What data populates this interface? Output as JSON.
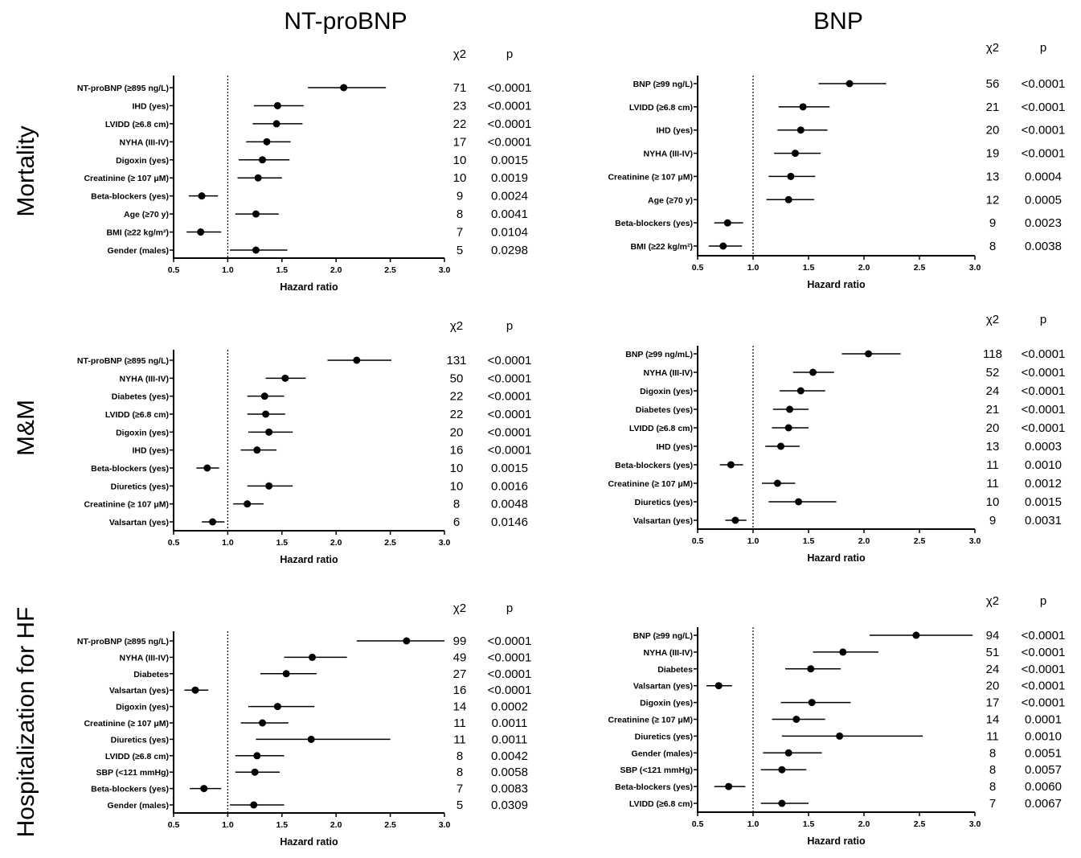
{
  "column_titles": [
    "NT-proBNP",
    "BNP"
  ],
  "row_titles": [
    "Mortality",
    "M&M",
    "Hospitalization for HF"
  ],
  "chart_data": [
    {
      "type": "scatter",
      "xlabel": "Hazard ratio",
      "xlim": [
        0.5,
        3.0
      ],
      "xticks": [
        "0.5",
        "1.0",
        "1.5",
        "2.0",
        "2.5",
        "3.0"
      ],
      "reference_line": 1.0,
      "col_headers": [
        "χ2",
        "p"
      ],
      "rows": [
        {
          "label": "NT-proBNP (≥895 ng/L)",
          "hr": 2.07,
          "lo": 1.74,
          "hi": 2.46,
          "chi2": "71",
          "p": "<0.0001"
        },
        {
          "label": "IHD (yes)",
          "hr": 1.46,
          "lo": 1.24,
          "hi": 1.7,
          "chi2": "23",
          "p": "<0.0001"
        },
        {
          "label": "LVIDD (≥6.8 cm)",
          "hr": 1.45,
          "lo": 1.23,
          "hi": 1.69,
          "chi2": "22",
          "p": "<0.0001"
        },
        {
          "label": "NYHA (III-IV)",
          "hr": 1.36,
          "lo": 1.17,
          "hi": 1.58,
          "chi2": "17",
          "p": "<0.0001"
        },
        {
          "label": "Digoxin (yes)",
          "hr": 1.32,
          "lo": 1.1,
          "hi": 1.57,
          "chi2": "10",
          "p": "0.0015"
        },
        {
          "label": "Creatinine (≥ 107 μM)",
          "hr": 1.28,
          "lo": 1.09,
          "hi": 1.5,
          "chi2": "10",
          "p": "0.0019"
        },
        {
          "label": "Beta-blockers (yes)",
          "hr": 0.76,
          "lo": 0.64,
          "hi": 0.91,
          "chi2": "9",
          "p": "0.0024"
        },
        {
          "label": "Age (≥70 y)",
          "hr": 1.26,
          "lo": 1.07,
          "hi": 1.47,
          "chi2": "8",
          "p": "0.0041"
        },
        {
          "label": "BMI (≥22 kg/m²)",
          "hr": 0.75,
          "lo": 0.62,
          "hi": 0.94,
          "chi2": "7",
          "p": "0.0104"
        },
        {
          "label": "Gender (males)",
          "hr": 1.26,
          "lo": 1.02,
          "hi": 1.55,
          "chi2": "5",
          "p": "0.0298"
        }
      ]
    },
    {
      "type": "scatter",
      "xlabel": "Hazard ratio",
      "xlim": [
        0.5,
        3.0
      ],
      "xticks": [
        "0.5",
        "1.0",
        "1.5",
        "2.0",
        "2.5",
        "3.0"
      ],
      "reference_line": 1.0,
      "col_headers": [
        "χ2",
        "p"
      ],
      "rows": [
        {
          "label": "BNP (≥99 ng/L)",
          "hr": 1.87,
          "lo": 1.59,
          "hi": 2.2,
          "chi2": "56",
          "p": "<0.0001"
        },
        {
          "label": "LVIDD (≥6.8 cm)",
          "hr": 1.45,
          "lo": 1.23,
          "hi": 1.69,
          "chi2": "21",
          "p": "<0.0001"
        },
        {
          "label": "IHD (yes)",
          "hr": 1.43,
          "lo": 1.22,
          "hi": 1.67,
          "chi2": "20",
          "p": "<0.0001"
        },
        {
          "label": "NYHA (III-IV)",
          "hr": 1.38,
          "lo": 1.19,
          "hi": 1.61,
          "chi2": "19",
          "p": "<0.0001"
        },
        {
          "label": "Creatinine (≥ 107 μM)",
          "hr": 1.34,
          "lo": 1.14,
          "hi": 1.56,
          "chi2": "13",
          "p": "0.0004"
        },
        {
          "label": "Age (≥70 y)",
          "hr": 1.32,
          "lo": 1.12,
          "hi": 1.55,
          "chi2": "12",
          "p": "0.0005"
        },
        {
          "label": "Beta-blockers (yes)",
          "hr": 0.77,
          "lo": 0.65,
          "hi": 0.91,
          "chi2": "9",
          "p": "0.0023"
        },
        {
          "label": "BMI (≥22 kg/m²)",
          "hr": 0.73,
          "lo": 0.6,
          "hi": 0.9,
          "chi2": "8",
          "p": "0.0038"
        }
      ]
    },
    {
      "type": "scatter",
      "xlabel": "Hazard ratio",
      "xlim": [
        0.5,
        3.0
      ],
      "xticks": [
        "0.5",
        "1.0",
        "1.5",
        "2.0",
        "2.5",
        "3.0"
      ],
      "reference_line": 1.0,
      "col_headers": [
        "χ2",
        "p"
      ],
      "rows": [
        {
          "label": "NT-proBNP (≥895 ng/L)",
          "hr": 2.19,
          "lo": 1.92,
          "hi": 2.51,
          "chi2": "131",
          "p": "<0.0001"
        },
        {
          "label": "NYHA (III-IV)",
          "hr": 1.53,
          "lo": 1.35,
          "hi": 1.72,
          "chi2": "50",
          "p": "<0.0001"
        },
        {
          "label": "Diabetes (yes)",
          "hr": 1.34,
          "lo": 1.18,
          "hi": 1.52,
          "chi2": "22",
          "p": "<0.0001"
        },
        {
          "label": "LVIDD (≥6.8 cm)",
          "hr": 1.35,
          "lo": 1.18,
          "hi": 1.53,
          "chi2": "22",
          "p": "<0.0001"
        },
        {
          "label": "Digoxin (yes)",
          "hr": 1.38,
          "lo": 1.19,
          "hi": 1.6,
          "chi2": "20",
          "p": "<0.0001"
        },
        {
          "label": "IHD (yes)",
          "hr": 1.27,
          "lo": 1.12,
          "hi": 1.45,
          "chi2": "16",
          "p": "<0.0001"
        },
        {
          "label": "Beta-blockers (yes)",
          "hr": 0.81,
          "lo": 0.71,
          "hi": 0.92,
          "chi2": "10",
          "p": "0.0015"
        },
        {
          "label": "Diuretics (yes)",
          "hr": 1.38,
          "lo": 1.18,
          "hi": 1.6,
          "chi2": "10",
          "p": "0.0016"
        },
        {
          "label": "Creatinine (≥ 107 μM)",
          "hr": 1.18,
          "lo": 1.05,
          "hi": 1.33,
          "chi2": "8",
          "p": "0.0048"
        },
        {
          "label": "Valsartan (yes)",
          "hr": 0.86,
          "lo": 0.76,
          "hi": 0.97,
          "chi2": "6",
          "p": "0.0146"
        }
      ]
    },
    {
      "type": "scatter",
      "xlabel": "Hazard ratio",
      "xlim": [
        0.5,
        3.0
      ],
      "xticks": [
        "0.5",
        "1.0",
        "1.5",
        "2.0",
        "2.5",
        "3.0"
      ],
      "reference_line": 1.0,
      "col_headers": [
        "χ2",
        "p"
      ],
      "rows": [
        {
          "label": "BNP (≥99 ng/mL)",
          "hr": 2.04,
          "lo": 1.8,
          "hi": 2.33,
          "chi2": "118",
          "p": "<0.0001"
        },
        {
          "label": "NYHA (III-IV)",
          "hr": 1.54,
          "lo": 1.36,
          "hi": 1.73,
          "chi2": "52",
          "p": "<0.0001"
        },
        {
          "label": "Digoxin (yes)",
          "hr": 1.43,
          "lo": 1.24,
          "hi": 1.65,
          "chi2": "24",
          "p": "<0.0001"
        },
        {
          "label": "Diabetes (yes)",
          "hr": 1.33,
          "lo": 1.18,
          "hi": 1.5,
          "chi2": "21",
          "p": "<0.0001"
        },
        {
          "label": "LVIDD (≥6.8 cm)",
          "hr": 1.32,
          "lo": 1.17,
          "hi": 1.5,
          "chi2": "20",
          "p": "<0.0001"
        },
        {
          "label": "IHD (yes)",
          "hr": 1.25,
          "lo": 1.11,
          "hi": 1.42,
          "chi2": "13",
          "p": "0.0003"
        },
        {
          "label": "Beta-blockers (yes)",
          "hr": 0.8,
          "lo": 0.7,
          "hi": 0.91,
          "chi2": "11",
          "p": "0.0010"
        },
        {
          "label": "Creatinine (≥ 107 μM)",
          "hr": 1.22,
          "lo": 1.08,
          "hi": 1.38,
          "chi2": "11",
          "p": "0.0012"
        },
        {
          "label": "Diuretics (yes)",
          "hr": 1.41,
          "lo": 1.14,
          "hi": 1.75,
          "chi2": "10",
          "p": "0.0015"
        },
        {
          "label": "Valsartan (yes)",
          "hr": 0.84,
          "lo": 0.75,
          "hi": 0.94,
          "chi2": "9",
          "p": "0.0031"
        }
      ]
    },
    {
      "type": "scatter",
      "xlabel": "Hazard ratio",
      "xlim": [
        0.5,
        3.0
      ],
      "xticks": [
        "0.5",
        "1.0",
        "1.5",
        "2.0",
        "2.5",
        "3.0"
      ],
      "reference_line": 1.0,
      "col_headers": [
        "χ2",
        "p"
      ],
      "rows": [
        {
          "label": "NT-proBNP (≥895 ng/L)",
          "hr": 2.65,
          "lo": 2.19,
          "hi": 3.0,
          "chi2": "99",
          "p": "<0.0001"
        },
        {
          "label": "NYHA (III-IV)",
          "hr": 1.78,
          "lo": 1.52,
          "hi": 2.1,
          "chi2": "49",
          "p": "<0.0001"
        },
        {
          "label": "Diabetes",
          "hr": 1.54,
          "lo": 1.3,
          "hi": 1.82,
          "chi2": "27",
          "p": "<0.0001"
        },
        {
          "label": "Valsartan (yes)",
          "hr": 0.7,
          "lo": 0.6,
          "hi": 0.82,
          "chi2": "16",
          "p": "<0.0001"
        },
        {
          "label": "Digoxin (yes)",
          "hr": 1.46,
          "lo": 1.19,
          "hi": 1.8,
          "chi2": "14",
          "p": "0.0002"
        },
        {
          "label": "Creatinine (≥ 107 μM)",
          "hr": 1.32,
          "lo": 1.12,
          "hi": 1.56,
          "chi2": "11",
          "p": "0.0011"
        },
        {
          "label": "Diuretics (yes)",
          "hr": 1.77,
          "lo": 1.26,
          "hi": 2.5,
          "chi2": "11",
          "p": "0.0011"
        },
        {
          "label": "LVIDD (≥6.8 cm)",
          "hr": 1.27,
          "lo": 1.07,
          "hi": 1.52,
          "chi2": "8",
          "p": "0.0042"
        },
        {
          "label": "SBP (<121 mmHg)",
          "hr": 1.25,
          "lo": 1.07,
          "hi": 1.48,
          "chi2": "8",
          "p": "0.0058"
        },
        {
          "label": "Beta-blockers (yes)",
          "hr": 0.78,
          "lo": 0.65,
          "hi": 0.94,
          "chi2": "7",
          "p": "0.0083"
        },
        {
          "label": "Gender (males)",
          "hr": 1.24,
          "lo": 1.02,
          "hi": 1.52,
          "chi2": "5",
          "p": "0.0309"
        }
      ]
    },
    {
      "type": "scatter",
      "xlabel": "Hazard ratio",
      "xlim": [
        0.5,
        3.0
      ],
      "xticks": [
        "0.5",
        "1.0",
        "1.5",
        "2.0",
        "2.5",
        "3.0"
      ],
      "reference_line": 1.0,
      "col_headers": [
        "χ2",
        "p"
      ],
      "rows": [
        {
          "label": "BNP (≥99 ng/L)",
          "hr": 2.47,
          "lo": 2.05,
          "hi": 2.98,
          "chi2": "94",
          "p": "<0.0001"
        },
        {
          "label": "NYHA (III-IV)",
          "hr": 1.81,
          "lo": 1.54,
          "hi": 2.13,
          "chi2": "51",
          "p": "<0.0001"
        },
        {
          "label": "Diabetes",
          "hr": 1.52,
          "lo": 1.29,
          "hi": 1.79,
          "chi2": "24",
          "p": "<0.0001"
        },
        {
          "label": "Valsartan (yes)",
          "hr": 0.69,
          "lo": 0.58,
          "hi": 0.81,
          "chi2": "20",
          "p": "<0.0001"
        },
        {
          "label": "Digoxin (yes)",
          "hr": 1.53,
          "lo": 1.25,
          "hi": 1.88,
          "chi2": "17",
          "p": "<0.0001"
        },
        {
          "label": "Creatinine (≥ 107 μM)",
          "hr": 1.39,
          "lo": 1.17,
          "hi": 1.65,
          "chi2": "14",
          "p": "0.0001"
        },
        {
          "label": "Diuretics (yes)",
          "hr": 1.78,
          "lo": 1.26,
          "hi": 2.53,
          "chi2": "11",
          "p": "0.0010"
        },
        {
          "label": "Gender (males)",
          "hr": 1.32,
          "lo": 1.09,
          "hi": 1.62,
          "chi2": "8",
          "p": "0.0051"
        },
        {
          "label": "SBP (<121 mmHg)",
          "hr": 1.26,
          "lo": 1.07,
          "hi": 1.48,
          "chi2": "8",
          "p": "0.0057"
        },
        {
          "label": "Beta-blockers (yes)",
          "hr": 0.78,
          "lo": 0.65,
          "hi": 0.93,
          "chi2": "8",
          "p": "0.0060"
        },
        {
          "label": "LVIDD (≥6.8 cm)",
          "hr": 1.26,
          "lo": 1.07,
          "hi": 1.5,
          "chi2": "7",
          "p": "0.0067"
        }
      ]
    }
  ]
}
